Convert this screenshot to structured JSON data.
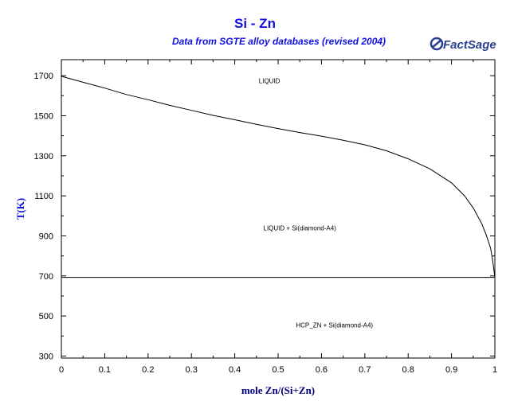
{
  "chart_data": {
    "type": "line",
    "title": "Si - Zn",
    "subtitle": "Data from SGTE alloy databases (revised 2004)",
    "logo_text": "FactSage",
    "xlabel": "mole Zn/(Si+Zn)",
    "ylabel": "T(K)",
    "xlim": [
      0,
      1
    ],
    "ylim": [
      290,
      1780
    ],
    "xticks": [
      "0",
      "0.1",
      "0.2",
      "0.3",
      "0.4",
      "0.5",
      "0.6",
      "0.7",
      "0.8",
      "0.9",
      "1"
    ],
    "yticks": [
      "300",
      "500",
      "700",
      "900",
      "1100",
      "1300",
      "1500",
      "1700"
    ],
    "grid": false,
    "series": [
      {
        "points": [
          [
            0,
            1697
          ],
          [
            0.05,
            1667
          ],
          [
            0.1,
            1638
          ],
          [
            0.15,
            1606
          ],
          [
            0.2,
            1580
          ],
          [
            0.25,
            1552
          ],
          [
            0.3,
            1527
          ],
          [
            0.35,
            1502
          ],
          [
            0.4,
            1480
          ],
          [
            0.45,
            1457
          ],
          [
            0.5,
            1436
          ],
          [
            0.55,
            1416
          ],
          [
            0.6,
            1398
          ],
          [
            0.65,
            1378
          ],
          [
            0.7,
            1355
          ],
          [
            0.75,
            1325
          ],
          [
            0.8,
            1285
          ],
          [
            0.85,
            1235
          ],
          [
            0.9,
            1165
          ],
          [
            0.93,
            1100
          ],
          [
            0.95,
            1040
          ],
          [
            0.97,
            960
          ],
          [
            0.98,
            905
          ],
          [
            0.99,
            840
          ],
          [
            0.995,
            775
          ],
          [
            1.0,
            693
          ]
        ]
      },
      {
        "points": [
          [
            0,
            692.7
          ],
          [
            1,
            692.7
          ]
        ]
      }
    ],
    "annotations": [
      {
        "text": "LIQUID",
        "x": 0.48,
        "y": 1663
      },
      {
        "text": "LIQUID + Si(diamond-A4)",
        "x": 0.55,
        "y": 928
      },
      {
        "text": "HCP_ZN + Si(diamond-A4)",
        "x": 0.63,
        "y": 443
      }
    ],
    "colors": {
      "title": "#1010e0",
      "ylabel": "#1010e0",
      "xlabel": "#000080",
      "axes": "#000000",
      "curve": "#000000",
      "logo": "#2a3f8f"
    }
  }
}
